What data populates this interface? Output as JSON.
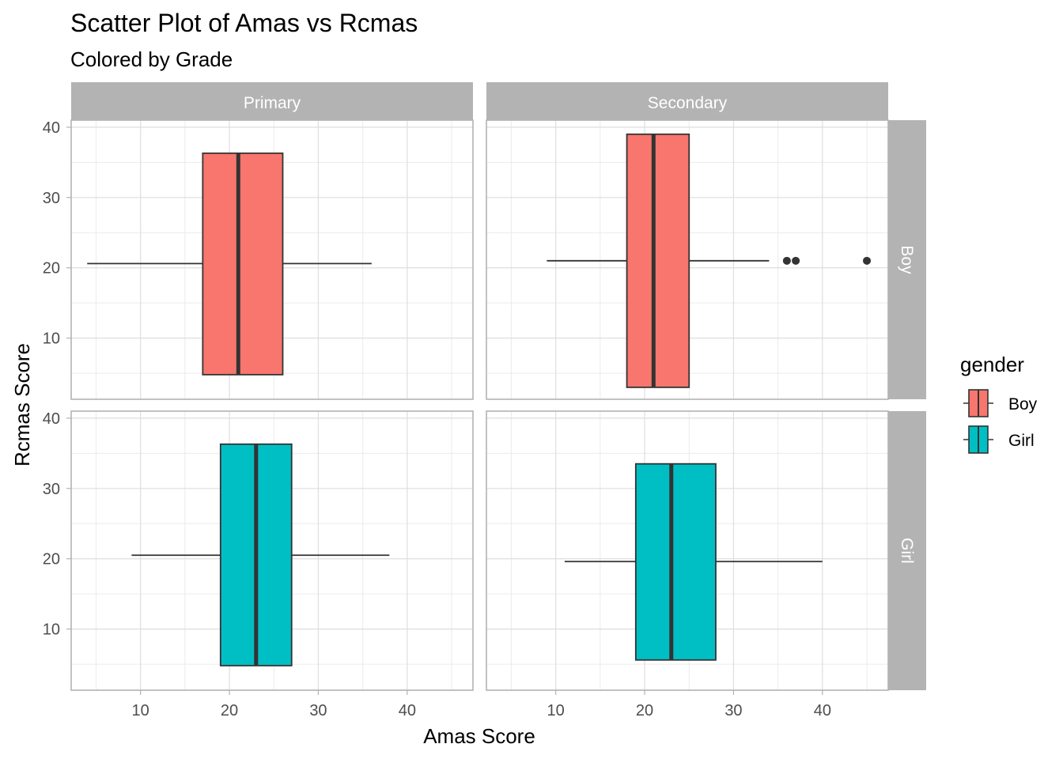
{
  "chart_data": {
    "type": "boxplot",
    "title": "Scatter Plot of Amas vs Rcmas",
    "subtitle": "Colored by Grade",
    "xlabel": "Amas Score",
    "ylabel": "Rcmas Score",
    "orientation": "horizontal",
    "xlim": [
      2.2,
      47.4
    ],
    "ylim": [
      1.3,
      41.0
    ],
    "x_ticks": [
      "10",
      "20",
      "30",
      "40"
    ],
    "y_ticks": [
      "10",
      "20",
      "30",
      "40"
    ],
    "x_tick_values": [
      10,
      20,
      30,
      40
    ],
    "y_tick_values": [
      10,
      20,
      30,
      40
    ],
    "col_facets": [
      "Primary",
      "Secondary"
    ],
    "row_facets": [
      "Boy",
      "Girl"
    ],
    "legend": {
      "title": "gender",
      "position": "right",
      "entries": [
        {
          "label": "Boy",
          "color": "#F8766D"
        },
        {
          "label": "Girl",
          "color": "#00BFC4"
        }
      ]
    },
    "panels": [
      {
        "col": "Primary",
        "row": "Boy",
        "gender": "Boy",
        "y": 20.6,
        "y_low": 4.8,
        "y_high": 36.3,
        "whisker_low": 4,
        "q1": 17,
        "median": 21,
        "q3": 26,
        "whisker_high": 36,
        "outliers": []
      },
      {
        "col": "Secondary",
        "row": "Boy",
        "gender": "Boy",
        "y": 21.0,
        "y_low": 3.0,
        "y_high": 39.0,
        "whisker_low": 9,
        "q1": 18,
        "median": 21,
        "q3": 25,
        "whisker_high": 34,
        "outliers": [
          36,
          37,
          45
        ]
      },
      {
        "col": "Primary",
        "row": "Girl",
        "gender": "Girl",
        "y": 20.5,
        "y_low": 4.8,
        "y_high": 36.3,
        "whisker_low": 9,
        "q1": 19,
        "median": 23,
        "q3": 27,
        "whisker_high": 38,
        "outliers": []
      },
      {
        "col": "Secondary",
        "row": "Girl",
        "gender": "Girl",
        "y": 19.6,
        "y_low": 5.6,
        "y_high": 33.5,
        "whisker_low": 11,
        "q1": 19,
        "median": 23,
        "q3": 28,
        "whisker_high": 40,
        "outliers": []
      }
    ],
    "grid": true
  }
}
